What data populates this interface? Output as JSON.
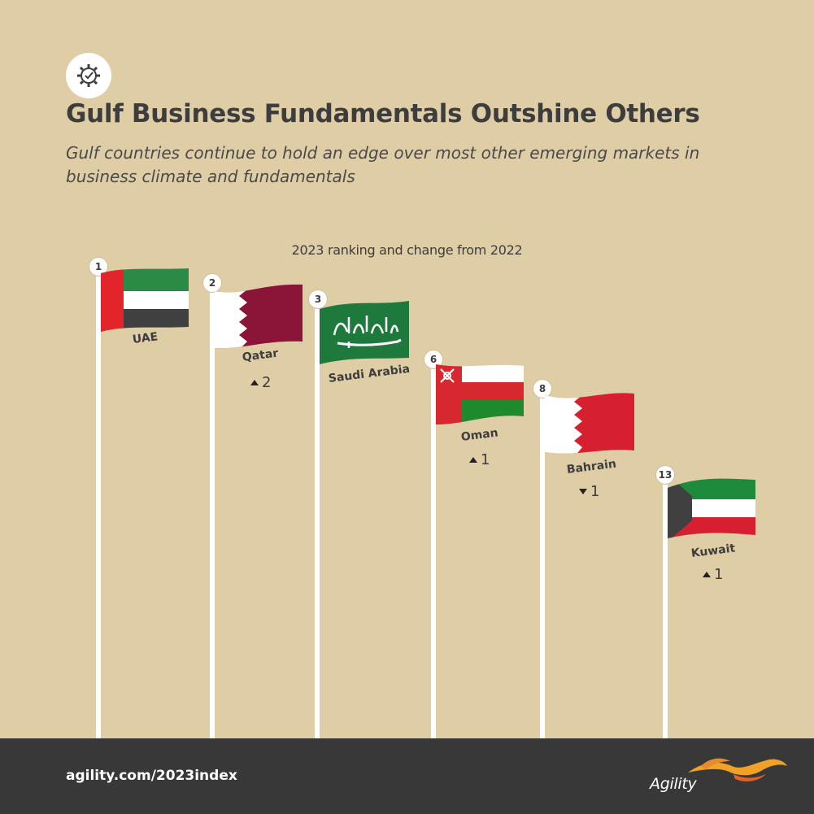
{
  "header": {
    "title": "Gulf Business Fundamentals Outshine Others",
    "subtitle": "Gulf countries continue to hold an edge over most other emerging markets in business climate and fundamentals",
    "icon": "gear-check-icon"
  },
  "chart": {
    "caption": "2023 ranking and change from 2022",
    "countries": [
      {
        "name": "UAE",
        "rank": "1",
        "change": "",
        "direction": "none"
      },
      {
        "name": "Qatar",
        "rank": "2",
        "change": "2",
        "direction": "up"
      },
      {
        "name": "Saudi Arabia",
        "rank": "3",
        "change": "",
        "direction": "none"
      },
      {
        "name": "Oman",
        "rank": "6",
        "change": "1",
        "direction": "up"
      },
      {
        "name": "Bahrain",
        "rank": "8",
        "change": "1",
        "direction": "down"
      },
      {
        "name": "Kuwait",
        "rank": "13",
        "change": "1",
        "direction": "up"
      }
    ]
  },
  "footer": {
    "url": "agility.com/2023index",
    "logo_text": "Agility"
  },
  "colors": {
    "background": "#dfcda6",
    "footer": "#383838",
    "text": "#3d3d3d"
  }
}
